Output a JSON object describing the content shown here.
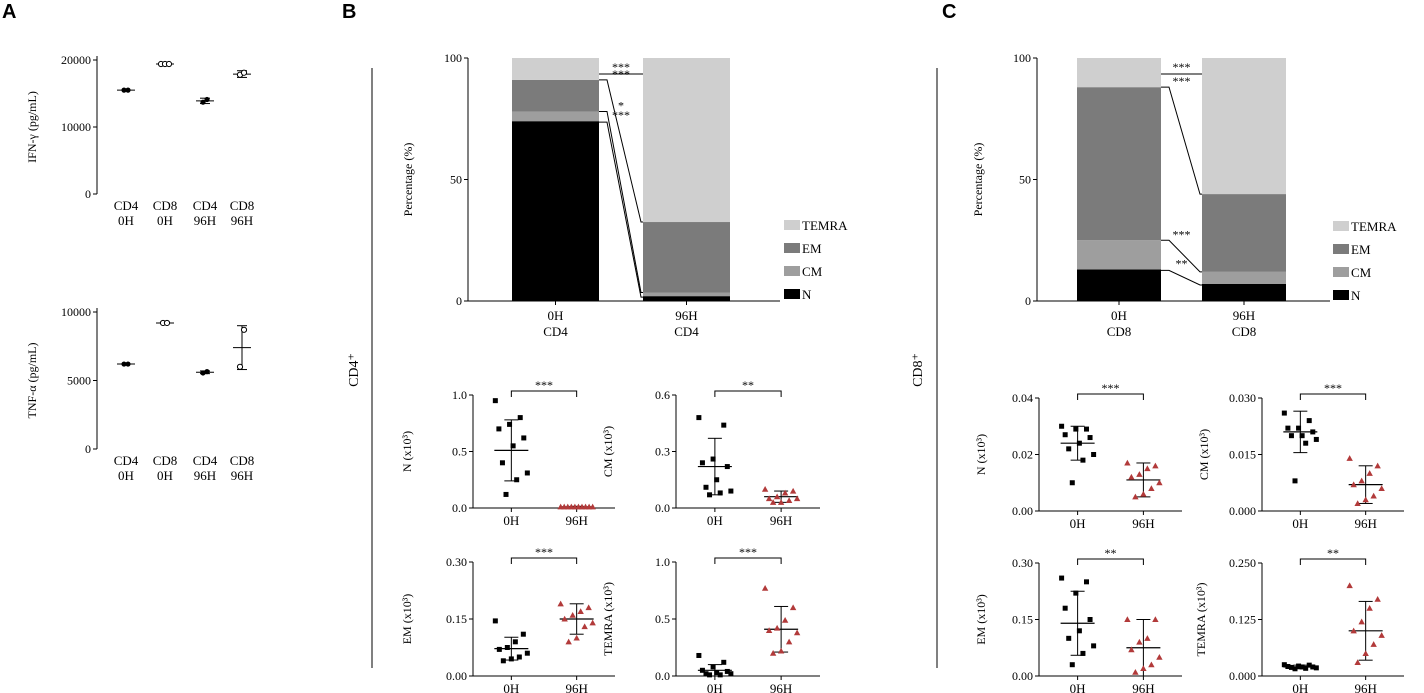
{
  "panels": {
    "A": "A",
    "B": "B",
    "C": "C"
  },
  "section_labels": {
    "B": "CD4⁺",
    "C": "CD8⁺"
  },
  "legend": [
    {
      "label": "TEMRA",
      "color": "#cfcfcf"
    },
    {
      "label": "EM",
      "color": "#7b7b7b"
    },
    {
      "label": "CM",
      "color": "#9e9e9e"
    },
    {
      "label": "N",
      "color": "#000000"
    }
  ],
  "chart_data": [
    {
      "id": "A1",
      "type": "scatter",
      "ylabel": "IFN-γ (pg/mL)",
      "ylim": [
        0,
        20000
      ],
      "yticks": [
        0,
        10000,
        20000
      ],
      "yticklabels": [
        "0",
        "10000",
        "20000"
      ],
      "categories": [
        [
          "CD4",
          "0H"
        ],
        [
          "CD8",
          "0H"
        ],
        [
          "CD4",
          "96H"
        ],
        [
          "CD8",
          "96H"
        ]
      ],
      "groups": [
        {
          "mean": 15500,
          "sd": 0,
          "values": [
            15500,
            15500
          ],
          "style": "filled"
        },
        {
          "mean": 19400,
          "sd": 0,
          "values": [
            19400,
            19400,
            19400
          ],
          "style": "open"
        },
        {
          "mean": 13900,
          "sd": 400,
          "values": [
            13700,
            14100
          ],
          "style": "filled"
        },
        {
          "mean": 17900,
          "sd": 500,
          "values": [
            17800,
            18100
          ],
          "style": "open"
        }
      ]
    },
    {
      "id": "A2",
      "type": "scatter",
      "ylabel": "TNF-α (pg/mL)",
      "ylim": [
        0,
        10000
      ],
      "yticks": [
        0,
        5000,
        10000
      ],
      "yticklabels": [
        "0",
        "5000",
        "10000"
      ],
      "categories": [
        [
          "CD4",
          "0H"
        ],
        [
          "CD8",
          "0H"
        ],
        [
          "CD4",
          "96H"
        ],
        [
          "CD8",
          "96H"
        ]
      ],
      "groups": [
        {
          "mean": 6200,
          "sd": 0,
          "values": [
            6200,
            6200
          ],
          "style": "filled"
        },
        {
          "mean": 9200,
          "sd": 0,
          "values": [
            9200,
            9200
          ],
          "style": "open"
        },
        {
          "mean": 5600,
          "sd": 100,
          "values": [
            5550,
            5650
          ],
          "style": "filled"
        },
        {
          "mean": 7400,
          "sd": 1600,
          "values": [
            6000,
            8700
          ],
          "style": "open"
        }
      ]
    },
    {
      "id": "B_bar",
      "type": "bar",
      "stacked": true,
      "ylabel": "Percentage (%)",
      "ylim": [
        0,
        100
      ],
      "yticks": [
        0,
        50,
        100
      ],
      "yticklabels": [
        "0",
        "50",
        "100"
      ],
      "categories": [
        [
          "0H",
          "CD4"
        ],
        [
          "96H",
          "CD4"
        ]
      ],
      "series": [
        {
          "name": "N",
          "values": [
            74,
            2
          ]
        },
        {
          "name": "CM",
          "values": [
            4,
            1.5
          ]
        },
        {
          "name": "EM",
          "values": [
            13,
            29
          ]
        },
        {
          "name": "TEMRA",
          "values": [
            9,
            67.5
          ]
        }
      ],
      "significance": [
        "***",
        "***",
        "*",
        "***"
      ]
    },
    {
      "id": "C_bar",
      "type": "bar",
      "stacked": true,
      "ylabel": "Percentage (%)",
      "ylim": [
        0,
        100
      ],
      "yticks": [
        0,
        50,
        100
      ],
      "yticklabels": [
        "0",
        "50",
        "100"
      ],
      "categories": [
        [
          "0H",
          "CD8"
        ],
        [
          "96H",
          "CD8"
        ]
      ],
      "series": [
        {
          "name": "N",
          "values": [
            13,
            7
          ]
        },
        {
          "name": "CM",
          "values": [
            12,
            5
          ]
        },
        {
          "name": "EM",
          "values": [
            63,
            32
          ]
        },
        {
          "name": "TEMRA",
          "values": [
            12,
            56
          ]
        }
      ],
      "significance": [
        "***",
        "***",
        "***",
        "**"
      ]
    },
    {
      "id": "B_N",
      "type": "scatter",
      "ylabel": "N (x10³)",
      "ylim": [
        0,
        1.0
      ],
      "yticks": [
        0,
        0.5,
        1.0
      ],
      "yticklabels": [
        "0.0",
        "0.5",
        "1.0"
      ],
      "categories": [
        "0H",
        "96H"
      ],
      "significance": "***",
      "groups": [
        {
          "mean": 0.51,
          "sd": 0.27,
          "values": [
            0.95,
            0.8,
            0.74,
            0.7,
            0.62,
            0.55,
            0.4,
            0.31,
            0.25,
            0.12
          ],
          "style": "black"
        },
        {
          "mean": 0.01,
          "sd": 0.005,
          "values": [
            0.01,
            0.01,
            0.01,
            0.01,
            0.01,
            0.01,
            0.01,
            0.01,
            0.01,
            0.01
          ],
          "style": "red"
        }
      ]
    },
    {
      "id": "B_CM",
      "type": "scatter",
      "ylabel": "CM (x10³)",
      "ylim": [
        0,
        0.6
      ],
      "yticks": [
        0,
        0.3,
        0.6
      ],
      "yticklabels": [
        "0.0",
        "0.3",
        "0.6"
      ],
      "categories": [
        "0H",
        "96H"
      ],
      "significance": "**",
      "groups": [
        {
          "mean": 0.22,
          "sd": 0.15,
          "values": [
            0.48,
            0.44,
            0.26,
            0.24,
            0.22,
            0.15,
            0.11,
            0.09,
            0.08,
            0.07
          ],
          "style": "black"
        },
        {
          "mean": 0.06,
          "sd": 0.03,
          "values": [
            0.1,
            0.09,
            0.08,
            0.06,
            0.05,
            0.05,
            0.04,
            0.03,
            0.03
          ],
          "style": "red"
        }
      ]
    },
    {
      "id": "B_EM",
      "type": "scatter",
      "ylabel": "EM (x10³)",
      "ylim": [
        0,
        0.3
      ],
      "yticks": [
        0,
        0.15,
        0.3
      ],
      "yticklabels": [
        "0.00",
        "0.15",
        "0.30"
      ],
      "categories": [
        "0H",
        "96H"
      ],
      "significance": "***",
      "groups": [
        {
          "mean": 0.072,
          "sd": 0.03,
          "values": [
            0.145,
            0.11,
            0.09,
            0.075,
            0.07,
            0.06,
            0.05,
            0.045,
            0.04
          ],
          "style": "black"
        },
        {
          "mean": 0.15,
          "sd": 0.04,
          "values": [
            0.19,
            0.18,
            0.17,
            0.16,
            0.15,
            0.14,
            0.13,
            0.1,
            0.09
          ],
          "style": "red"
        }
      ]
    },
    {
      "id": "B_TEMRA",
      "type": "scatter",
      "ylabel": "TEMRA (x10³)",
      "ylim": [
        0,
        1.0
      ],
      "yticks": [
        0,
        0.5,
        1.0
      ],
      "yticklabels": [
        "0.0",
        "0.5",
        "1.0"
      ],
      "categories": [
        "0H",
        "96H"
      ],
      "significance": "***",
      "groups": [
        {
          "mean": 0.05,
          "sd": 0.05,
          "values": [
            0.18,
            0.12,
            0.08,
            0.05,
            0.04,
            0.03,
            0.02,
            0.02,
            0.01,
            0.01
          ],
          "style": "black"
        },
        {
          "mean": 0.41,
          "sd": 0.2,
          "values": [
            0.77,
            0.6,
            0.49,
            0.42,
            0.4,
            0.38,
            0.3,
            0.22,
            0.2
          ],
          "style": "red"
        }
      ]
    },
    {
      "id": "C_N",
      "type": "scatter",
      "ylabel": "N (x10³)",
      "ylim": [
        0,
        0.04
      ],
      "yticks": [
        0,
        0.02,
        0.04
      ],
      "yticklabels": [
        "0.00",
        "0.02",
        "0.04"
      ],
      "categories": [
        "0H",
        "96H"
      ],
      "significance": "***",
      "groups": [
        {
          "mean": 0.024,
          "sd": 0.006,
          "values": [
            0.03,
            0.029,
            0.029,
            0.027,
            0.026,
            0.024,
            0.022,
            0.02,
            0.018,
            0.01
          ],
          "style": "black"
        },
        {
          "mean": 0.011,
          "sd": 0.006,
          "values": [
            0.017,
            0.016,
            0.015,
            0.013,
            0.012,
            0.01,
            0.008,
            0.006,
            0.005
          ],
          "style": "red"
        }
      ]
    },
    {
      "id": "C_CM",
      "type": "scatter",
      "ylabel": "CM (x10³)",
      "ylim": [
        0,
        0.03
      ],
      "yticks": [
        0,
        0.015,
        0.03
      ],
      "yticklabels": [
        "0.000",
        "0.015",
        "0.030"
      ],
      "categories": [
        "0H",
        "96H"
      ],
      "significance": "***",
      "groups": [
        {
          "mean": 0.021,
          "sd": 0.0055,
          "values": [
            0.026,
            0.024,
            0.022,
            0.022,
            0.021,
            0.02,
            0.02,
            0.019,
            0.018,
            0.008
          ],
          "style": "black"
        },
        {
          "mean": 0.007,
          "sd": 0.005,
          "values": [
            0.014,
            0.012,
            0.01,
            0.008,
            0.007,
            0.006,
            0.004,
            0.003,
            0.002
          ],
          "style": "red"
        }
      ]
    },
    {
      "id": "C_EM",
      "type": "scatter",
      "ylabel": "EM (x10³)",
      "ylim": [
        0,
        0.3
      ],
      "yticks": [
        0,
        0.15,
        0.3
      ],
      "yticklabels": [
        "0.00",
        "0.15",
        "0.30"
      ],
      "categories": [
        "0H",
        "96H"
      ],
      "significance": "**",
      "groups": [
        {
          "mean": 0.14,
          "sd": 0.085,
          "values": [
            0.26,
            0.25,
            0.22,
            0.18,
            0.15,
            0.12,
            0.1,
            0.08,
            0.06,
            0.03
          ],
          "style": "black"
        },
        {
          "mean": 0.075,
          "sd": 0.075,
          "values": [
            0.15,
            0.15,
            0.1,
            0.09,
            0.07,
            0.05,
            0.03,
            0.02,
            0.01
          ],
          "style": "red"
        }
      ]
    },
    {
      "id": "C_TEMRA",
      "type": "scatter",
      "ylabel": "TEMRA (x10³)",
      "ylim": [
        0,
        0.25
      ],
      "yticks": [
        0,
        0.125,
        0.25
      ],
      "yticklabels": [
        "0.000",
        "0.125",
        "0.250"
      ],
      "categories": [
        "0H",
        "96H"
      ],
      "significance": "**",
      "groups": [
        {
          "mean": 0.02,
          "sd": 0.004,
          "values": [
            0.025,
            0.024,
            0.022,
            0.021,
            0.02,
            0.02,
            0.019,
            0.018,
            0.017,
            0.016
          ],
          "style": "black"
        },
        {
          "mean": 0.1,
          "sd": 0.065,
          "values": [
            0.2,
            0.17,
            0.15,
            0.12,
            0.1,
            0.09,
            0.07,
            0.05,
            0.03
          ],
          "style": "red"
        }
      ]
    }
  ]
}
